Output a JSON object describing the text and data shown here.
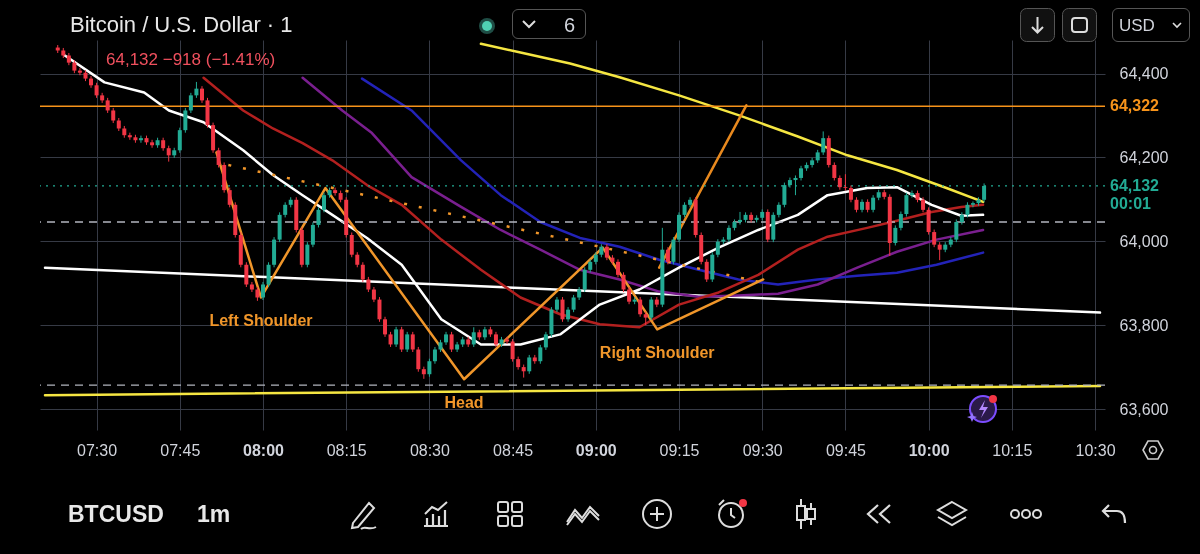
{
  "chart_data": {
    "type": "candlestick",
    "title": "Bitcoin / U.S. Dollar · 1",
    "subtitle": "64,132  −918 (−1.41%)",
    "xlim": [
      7.345,
      10.515
    ],
    "ylim": [
      63550,
      64480
    ],
    "xticks": [
      {
        "value": 7.5,
        "label": "07:30"
      },
      {
        "value": 7.75,
        "label": "07:45"
      },
      {
        "value": 8,
        "label": "08:00"
      },
      {
        "value": 8.25,
        "label": "08:15"
      },
      {
        "value": 8.5,
        "label": "08:30"
      },
      {
        "value": 8.75,
        "label": "08:45"
      },
      {
        "value": 9,
        "label": "09:00"
      },
      {
        "value": 9.25,
        "label": "09:15"
      },
      {
        "value": 9.5,
        "label": "09:30"
      },
      {
        "value": 9.75,
        "label": "09:45"
      },
      {
        "value": 10,
        "label": "10:00"
      },
      {
        "value": 10.25,
        "label": "10:15"
      },
      {
        "value": 10.5,
        "label": "10:30"
      }
    ],
    "yticks": [
      {
        "value": 63600,
        "label": "63,600"
      },
      {
        "value": 63800,
        "label": "63,800"
      },
      {
        "value": 64000,
        "label": "64,000"
      },
      {
        "value": 64200,
        "label": "64,200"
      },
      {
        "value": 64400,
        "label": "64,400"
      }
    ],
    "grid": true,
    "x": [
      7.3833,
      7.4,
      7.4167,
      7.4333,
      7.45,
      7.4667,
      7.4833,
      7.5,
      7.5167,
      7.5333,
      7.55,
      7.5667,
      7.5833,
      7.6,
      7.6167,
      7.6333,
      7.65,
      7.6667,
      7.6833,
      7.7,
      7.7167,
      7.7333,
      7.75,
      7.7667,
      7.7833,
      7.8,
      7.8167,
      7.8333,
      7.85,
      7.8667,
      7.8833,
      7.9,
      7.9167,
      7.9333,
      7.95,
      7.9667,
      7.9833,
      8,
      8.0167,
      8.0333,
      8.05,
      8.0667,
      8.0833,
      8.1,
      8.1167,
      8.1333,
      8.15,
      8.1667,
      8.1833,
      8.2,
      8.2167,
      8.2333,
      8.25,
      8.2667,
      8.2833,
      8.3,
      8.3167,
      8.3333,
      8.35,
      8.3667,
      8.3833,
      8.4,
      8.4167,
      8.4333,
      8.45,
      8.4667,
      8.4833,
      8.5,
      8.5167,
      8.5333,
      8.55,
      8.5667,
      8.5833,
      8.6,
      8.6167,
      8.6333,
      8.65,
      8.6667,
      8.6833,
      8.7,
      8.7167,
      8.7333,
      8.75,
      8.7667,
      8.7833,
      8.8,
      8.8167,
      8.8333,
      8.85,
      8.8667,
      8.8833,
      8.9,
      8.9167,
      8.9333,
      8.95,
      8.9667,
      8.9833,
      9,
      9.0167,
      9.0333,
      9.05,
      9.0667,
      9.0833,
      9.1,
      9.1167,
      9.1333,
      9.15,
      9.1667,
      9.1833,
      9.2,
      9.2167,
      9.2333,
      9.25,
      9.2667,
      9.2833,
      9.3,
      9.3167,
      9.3333,
      9.35,
      9.3667,
      9.3833,
      9.4,
      9.4167,
      9.4333,
      9.45,
      9.4667,
      9.4833,
      9.5,
      9.5167,
      9.5333,
      9.55,
      9.5667,
      9.5833,
      9.6,
      9.6167,
      9.6333,
      9.65,
      9.6667,
      9.6833,
      9.7,
      9.7167,
      9.7333,
      9.75,
      9.7667,
      9.7833,
      9.8,
      9.8167,
      9.8333,
      9.85,
      9.8667,
      9.8833,
      9.9,
      9.9167,
      9.9333,
      9.95,
      9.9667,
      9.9833,
      10,
      10.0167,
      10.0333,
      10.05,
      10.0667,
      10.0833,
      10.1,
      10.1167,
      10.1333,
      10.15,
      10.1667
    ],
    "ohlc": [
      [
        64462,
        64468,
        64449,
        64455
      ],
      [
        64455,
        64461,
        64437,
        64443
      ],
      [
        64443,
        64449,
        64420,
        64426
      ],
      [
        64426,
        64432,
        64401,
        64407
      ],
      [
        64407,
        64413,
        64396,
        64402
      ],
      [
        64402,
        64408,
        64382,
        64388
      ],
      [
        64388,
        64394,
        64366,
        64372
      ],
      [
        64372,
        64378,
        64342,
        64348
      ],
      [
        64348,
        64354,
        64330,
        64336
      ],
      [
        64336,
        64342,
        64306,
        64312
      ],
      [
        64312,
        64318,
        64282,
        64288
      ],
      [
        64288,
        64294,
        64263,
        64269
      ],
      [
        64269,
        64275,
        64247,
        64253
      ],
      [
        64253,
        64259,
        64242,
        64248
      ],
      [
        64248,
        64254,
        64235,
        64241
      ],
      [
        64241,
        64252,
        64235,
        64246
      ],
      [
        64246,
        64252,
        64230,
        64236
      ],
      [
        64236,
        64242,
        64223,
        64229
      ],
      [
        64229,
        64247,
        64223,
        64241
      ],
      [
        64241,
        64247,
        64216,
        64222
      ],
      [
        64222,
        64228,
        64190,
        64205
      ],
      [
        64205,
        64223,
        64199,
        64217
      ],
      [
        64217,
        64271,
        64211,
        64265
      ],
      [
        64265,
        64318,
        64259,
        64312
      ],
      [
        64312,
        64354,
        64306,
        64348
      ],
      [
        64348,
        64380,
        64342,
        64364
      ],
      [
        64364,
        64370,
        64330,
        64336
      ],
      [
        64336,
        64342,
        64271,
        64277
      ],
      [
        64277,
        64283,
        64211,
        64217
      ],
      [
        64217,
        64223,
        64176,
        64182
      ],
      [
        64182,
        64188,
        64116,
        64122
      ],
      [
        64122,
        64128,
        64081,
        64087
      ],
      [
        64087,
        64093,
        64009,
        64015
      ],
      [
        64015,
        64021,
        63938,
        63944
      ],
      [
        63944,
        63950,
        63891,
        63897
      ],
      [
        63897,
        63903,
        63879,
        63885
      ],
      [
        63885,
        63891,
        63858,
        63866
      ],
      [
        63866,
        63903,
        63860,
        63897
      ],
      [
        63897,
        63950,
        63891,
        63944
      ],
      [
        63944,
        64010,
        63938,
        64004
      ],
      [
        64004,
        64069,
        63998,
        64063
      ],
      [
        64063,
        64093,
        64057,
        64087
      ],
      [
        64087,
        64105,
        64081,
        64099
      ],
      [
        64099,
        64105,
        64021,
        64027
      ],
      [
        64027,
        64033,
        63938,
        63944
      ],
      [
        63944,
        63998,
        63938,
        63992
      ],
      [
        63992,
        64045,
        63986,
        64039
      ],
      [
        64039,
        64081,
        64033,
        64075
      ],
      [
        64075,
        64116,
        64069,
        64110
      ],
      [
        64110,
        64128,
        64104,
        64122
      ],
      [
        64122,
        64128,
        64109,
        64115
      ],
      [
        64115,
        64121,
        64093,
        64099
      ],
      [
        64099,
        64105,
        64009,
        64015
      ],
      [
        64015,
        64021,
        63962,
        63968
      ],
      [
        63968,
        63974,
        63938,
        63944
      ],
      [
        63944,
        63950,
        63903,
        63909
      ],
      [
        63909,
        63915,
        63879,
        63885
      ],
      [
        63885,
        63891,
        63855,
        63861
      ],
      [
        63861,
        63867,
        63808,
        63814
      ],
      [
        63814,
        63820,
        63772,
        63778
      ],
      [
        63778,
        63784,
        63748,
        63754
      ],
      [
        63754,
        63796,
        63748,
        63790
      ],
      [
        63790,
        63796,
        63736,
        63742
      ],
      [
        63742,
        63784,
        63736,
        63778
      ],
      [
        63778,
        63784,
        63736,
        63742
      ],
      [
        63742,
        63748,
        63689,
        63695
      ],
      [
        63695,
        63701,
        63672,
        63683
      ],
      [
        63683,
        63720,
        63677,
        63714
      ],
      [
        63714,
        63748,
        63708,
        63742
      ],
      [
        63742,
        63765,
        63736,
        63759
      ],
      [
        63759,
        63784,
        63753,
        63778
      ],
      [
        63778,
        63784,
        63736,
        63742
      ],
      [
        63742,
        63760,
        63736,
        63754
      ],
      [
        63754,
        63772,
        63748,
        63766
      ],
      [
        63766,
        63772,
        63748,
        63754
      ],
      [
        63754,
        63795,
        63748,
        63783
      ],
      [
        63783,
        63789,
        63765,
        63771
      ],
      [
        63771,
        63796,
        63765,
        63790
      ],
      [
        63790,
        63796,
        63772,
        63778
      ],
      [
        63778,
        63784,
        63748,
        63754
      ],
      [
        63754,
        63772,
        63748,
        63766
      ],
      [
        63766,
        63772,
        63755,
        63761
      ],
      [
        63761,
        63767,
        63713,
        63719
      ],
      [
        63719,
        63725,
        63694,
        63700
      ],
      [
        63700,
        63706,
        63675,
        63690
      ],
      [
        63690,
        63729,
        63684,
        63723
      ],
      [
        63723,
        63729,
        63708,
        63714
      ],
      [
        63714,
        63753,
        63708,
        63747
      ],
      [
        63747,
        63784,
        63741,
        63778
      ],
      [
        63778,
        63843,
        63772,
        63837
      ],
      [
        63837,
        63867,
        63831,
        63861
      ],
      [
        63861,
        63867,
        63808,
        63814
      ],
      [
        63814,
        63843,
        63808,
        63837
      ],
      [
        63837,
        63872,
        63831,
        63866
      ],
      [
        63866,
        63891,
        63860,
        63885
      ],
      [
        63885,
        63938,
        63879,
        63932
      ],
      [
        63932,
        63957,
        63926,
        63951
      ],
      [
        63951,
        63974,
        63945,
        63968
      ],
      [
        63968,
        63993,
        63962,
        63987
      ],
      [
        63987,
        63993,
        63955,
        63961
      ],
      [
        63961,
        63967,
        63945,
        63951
      ],
      [
        63951,
        63957,
        63914,
        63920
      ],
      [
        63920,
        63926,
        63879,
        63885
      ],
      [
        63885,
        63891,
        63850,
        63856
      ],
      [
        63856,
        63867,
        63850,
        63861
      ],
      [
        63861,
        63867,
        63820,
        63826
      ],
      [
        63826,
        63832,
        63800,
        63818
      ],
      [
        63818,
        63867,
        63812,
        63861
      ],
      [
        63861,
        63867,
        63843,
        63849
      ],
      [
        63849,
        64032,
        63843,
        63980
      ],
      [
        63980,
        63986,
        63945,
        63951
      ],
      [
        63951,
        64010,
        63945,
        64004
      ],
      [
        64004,
        64069,
        63998,
        64063
      ],
      [
        64063,
        64093,
        64057,
        64087
      ],
      [
        64087,
        64105,
        64081,
        64099
      ],
      [
        64099,
        64105,
        64009,
        64015
      ],
      [
        64015,
        64021,
        63945,
        63951
      ],
      [
        63951,
        63957,
        63903,
        63909
      ],
      [
        63909,
        63974,
        63903,
        63968
      ],
      [
        63968,
        64005,
        63962,
        63999
      ],
      [
        63999,
        64010,
        63993,
        64004
      ],
      [
        64004,
        64038,
        63998,
        64032
      ],
      [
        64032,
        64052,
        64026,
        64046
      ],
      [
        64046,
        64070,
        64040,
        64051
      ],
      [
        64051,
        64069,
        64045,
        64063
      ],
      [
        64063,
        64069,
        64045,
        64051
      ],
      [
        64051,
        64062,
        64045,
        64056
      ],
      [
        64056,
        64076,
        64050,
        64070
      ],
      [
        64070,
        64076,
        63998,
        64004
      ],
      [
        64004,
        64069,
        63998,
        64063
      ],
      [
        64063,
        64093,
        64057,
        64087
      ],
      [
        64087,
        64140,
        64081,
        64134
      ],
      [
        64134,
        64152,
        64128,
        64146
      ],
      [
        64146,
        64157,
        64110,
        64151
      ],
      [
        64151,
        64180,
        64145,
        64174
      ],
      [
        64174,
        64188,
        64168,
        64182
      ],
      [
        64182,
        64199,
        64176,
        64193
      ],
      [
        64193,
        64218,
        64187,
        64212
      ],
      [
        64212,
        64262,
        64206,
        64246
      ],
      [
        64246,
        64252,
        64176,
        64182
      ],
      [
        64182,
        64188,
        64145,
        64151
      ],
      [
        64151,
        64157,
        64123,
        64129
      ],
      [
        64129,
        64160,
        64121,
        64127
      ],
      [
        64127,
        64133,
        64093,
        64099
      ],
      [
        64099,
        64105,
        64069,
        64075
      ],
      [
        64075,
        64100,
        64069,
        64094
      ],
      [
        64094,
        64100,
        64069,
        64075
      ],
      [
        64075,
        64110,
        64069,
        64104
      ],
      [
        64104,
        64123,
        64098,
        64117
      ],
      [
        64117,
        64123,
        64100,
        64106
      ],
      [
        64106,
        64112,
        63965,
        63996
      ],
      [
        63996,
        64038,
        63990,
        64032
      ],
      [
        64032,
        64071,
        64026,
        64065
      ],
      [
        64065,
        64116,
        64059,
        64110
      ],
      [
        64110,
        64121,
        64104,
        64115
      ],
      [
        64115,
        64121,
        64093,
        64099
      ],
      [
        64099,
        64105,
        64069,
        64075
      ],
      [
        64075,
        64081,
        64016,
        64022
      ],
      [
        64022,
        64028,
        63986,
        63992
      ],
      [
        63992,
        63998,
        63955,
        63980
      ],
      [
        63980,
        63998,
        63974,
        63992
      ],
      [
        63992,
        64010,
        63986,
        64004
      ],
      [
        64004,
        64052,
        63998,
        64046
      ],
      [
        64046,
        64069,
        64040,
        64063
      ],
      [
        64063,
        64093,
        64057,
        64087
      ],
      [
        64087,
        64095,
        64081,
        64091
      ],
      [
        64091,
        64105,
        64085,
        64099
      ],
      [
        64099,
        64138,
        64093,
        64132
      ]
    ],
    "series": [
      {
        "type": "line",
        "color": "#f5e642",
        "x": [
          8.6548,
          8.7738,
          8.9226,
          9.0714,
          9.25,
          9.4286,
          9.6071,
          9.756,
          9.9048,
          10.0536,
          10.1637
        ],
        "values": [
          64471,
          64450,
          64424,
          64391,
          64348,
          64301,
          64250,
          64205,
          64170,
          64127,
          64094
        ]
      },
      {
        "type": "line",
        "color": "#f5e642",
        "x": [
          7.345,
          10.515
        ],
        "values": [
          63633,
          63655
        ]
      },
      {
        "type": "line",
        "color": "#ffffff",
        "x": [
          7.345,
          10.515
        ],
        "values": [
          63937,
          63830
        ]
      },
      {
        "type": "line",
        "color": "#2323b8",
        "x": [
          8.2976,
          8.4464,
          8.5952,
          8.7143,
          8.8333,
          8.9524,
          9.0714,
          9.1905,
          9.3095,
          9.4286,
          9.5476,
          9.6667,
          9.7857,
          9.9048,
          10.0238,
          10.1637
        ],
        "values": [
          64388,
          64312,
          64193,
          64110,
          64046,
          64008,
          63987,
          63956,
          63932,
          63909,
          63897,
          63909,
          63918,
          63925,
          63944,
          63973
        ]
      },
      {
        "type": "line",
        "color": "#7a1f8f",
        "x": [
          8.119,
          8.2381,
          8.3274,
          8.4464,
          8.5952,
          8.7143,
          8.8333,
          8.9524,
          9.0714,
          9.1905,
          9.3095,
          9.4286,
          9.5476,
          9.6667,
          9.7857,
          9.9048,
          10.0238,
          10.1637
        ],
        "values": [
          64390,
          64312,
          64258,
          64153,
          64082,
          64027,
          63980,
          63932,
          63909,
          63880,
          63868,
          63871,
          63875,
          63897,
          63937,
          63975,
          64004,
          64027
        ]
      },
      {
        "type": "line",
        "color": "#b3201f",
        "x": [
          7.8214,
          7.9405,
          8.0298,
          8.119,
          8.2083,
          8.3125,
          8.4167,
          8.5357,
          8.6548,
          8.7738,
          8.8929,
          9.0119,
          9.131,
          9.25,
          9.369,
          9.4881,
          9.6071,
          9.6964,
          9.8155,
          9.9048,
          10.009,
          10.0982,
          10.1637
        ],
        "values": [
          64390,
          64312,
          64269,
          64234,
          64193,
          64134,
          64087,
          64004,
          63932,
          63866,
          63826,
          63802,
          63795,
          63849,
          63878,
          63920,
          63980,
          64011,
          64032,
          64049,
          64070,
          64082,
          64087
        ]
      },
      {
        "type": "line",
        "color": "#ffffff",
        "x": [
          7.4048,
          7.5238,
          7.6429,
          7.7173,
          7.8214,
          7.9405,
          8.0298,
          8.119,
          8.2083,
          8.3125,
          8.4167,
          8.5357,
          8.6548,
          8.7738,
          8.8929,
          9.0119,
          9.131,
          9.25,
          9.369,
          9.4881,
          9.6071,
          9.6964,
          9.8155,
          9.9048,
          10.009,
          10.0982,
          10.1637
        ],
        "values": [
          64443,
          64379,
          64355,
          64312,
          64284,
          64217,
          64158,
          64110,
          64063,
          64008,
          63944,
          63814,
          63754,
          63754,
          63778,
          63849,
          63885,
          63937,
          63985,
          64027,
          64063,
          64110,
          64127,
          64129,
          64087,
          64061,
          64063
        ]
      },
      {
        "type": "line",
        "color": "#f0962a",
        "line_style": "dotted",
        "x": [
          7.8958,
          9.503
        ],
        "values": [
          64182,
          63901
        ]
      },
      {
        "type": "line",
        "color": "#e8891e",
        "x": [
          9.1905,
          9.4524
        ],
        "values": [
          63937,
          64324
        ]
      },
      {
        "type": "line",
        "color": "#f0962a",
        "x": [
          7.8601,
          7.994,
          8.1875,
          8.6042,
          9.0208,
          9.1845,
          9.503
        ],
        "values": [
          64212,
          63866,
          64127,
          63671,
          63985,
          63790,
          63909
        ]
      }
    ],
    "ref_lines": [
      {
        "axis": "y",
        "value": 64322,
        "label": "64,322",
        "color": "#f7931a"
      },
      {
        "axis": "y",
        "value": 64132,
        "label": "64,132\n00:01",
        "color": "#22ab94",
        "line_style": "dotted"
      },
      {
        "axis": "y",
        "value": 64046,
        "color": "#b2b5be",
        "line_style": "dashed"
      },
      {
        "axis": "y",
        "value": 63657,
        "color": "#b2b5be",
        "line_style": "dashed"
      }
    ],
    "annotations": [
      {
        "text": "Left Shoulder",
        "x": 7.994,
        "y": 63866
      },
      {
        "text": "Head",
        "x": 8.6042,
        "y": 63671
      },
      {
        "text": "Right Shoulder",
        "x": 9.1845,
        "y": 63790
      },
      "6",
      "USD",
      "BTCUSD",
      "1m"
    ]
  }
}
